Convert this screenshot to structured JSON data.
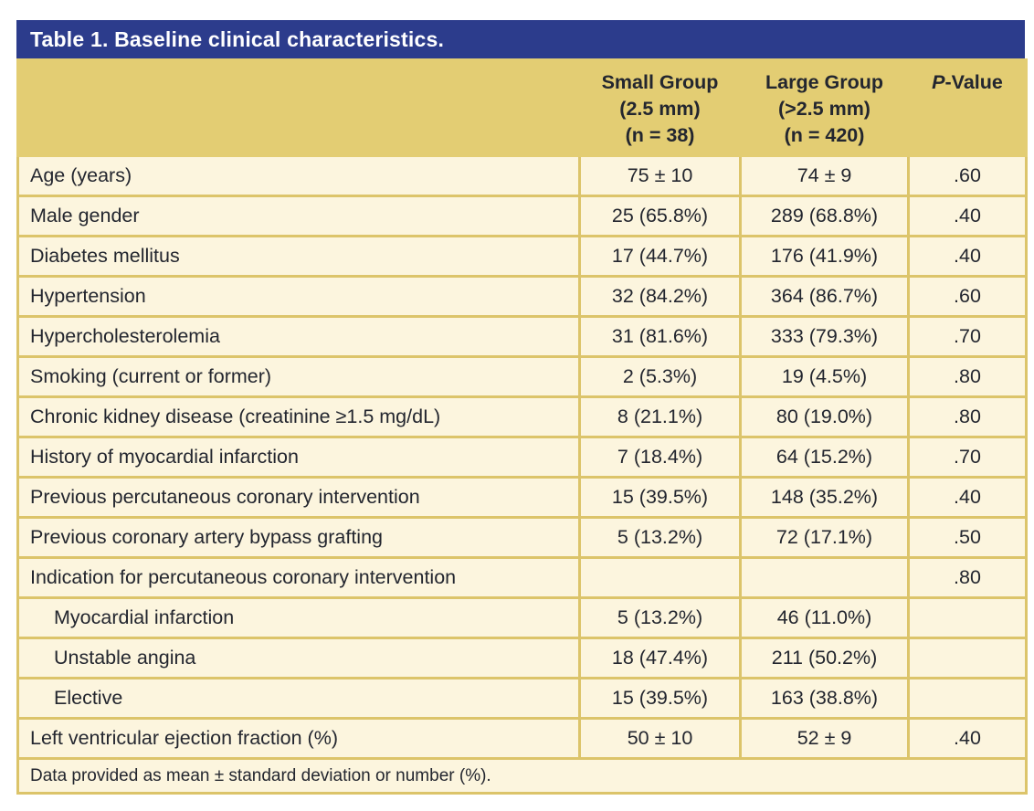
{
  "table": {
    "title": "Table 1. Baseline clinical characteristics.",
    "columns": {
      "variable": {
        "label": ""
      },
      "small": {
        "lines": [
          "Small Group",
          "(2.5 mm)",
          "(n = 38)"
        ]
      },
      "large": {
        "lines": [
          "Large Group",
          "(>2.5 mm)",
          "(n = 420)"
        ]
      },
      "pvalue": {
        "italic": "P",
        "rest": "-Value"
      }
    },
    "rows": [
      {
        "label": "Age (years)",
        "indent": false,
        "small": "75 ± 10",
        "large": "74 ± 9",
        "p": ".60"
      },
      {
        "label": "Male gender",
        "indent": false,
        "small": "25 (65.8%)",
        "large": "289 (68.8%)",
        "p": ".40"
      },
      {
        "label": "Diabetes mellitus",
        "indent": false,
        "small": "17 (44.7%)",
        "large": "176 (41.9%)",
        "p": ".40"
      },
      {
        "label": "Hypertension",
        "indent": false,
        "small": "32 (84.2%)",
        "large": "364 (86.7%)",
        "p": ".60"
      },
      {
        "label": "Hypercholesterolemia",
        "indent": false,
        "small": "31 (81.6%)",
        "large": "333 (79.3%)",
        "p": ".70"
      },
      {
        "label": "Smoking (current or former)",
        "indent": false,
        "small": "2 (5.3%)",
        "large": "19 (4.5%)",
        "p": ".80"
      },
      {
        "label": "Chronic kidney disease (creatinine ≥1.5 mg/dL)",
        "indent": false,
        "small": "8 (21.1%)",
        "large": "80 (19.0%)",
        "p": ".80"
      },
      {
        "label": "History of myocardial infarction",
        "indent": false,
        "small": "7 (18.4%)",
        "large": "64 (15.2%)",
        "p": ".70"
      },
      {
        "label": "Previous percutaneous coronary intervention",
        "indent": false,
        "small": "15 (39.5%)",
        "large": "148 (35.2%)",
        "p": ".40"
      },
      {
        "label": "Previous coronary artery bypass grafting",
        "indent": false,
        "small": "5 (13.2%)",
        "large": "72 (17.1%)",
        "p": ".50"
      },
      {
        "label": "Indication for percutaneous coronary intervention",
        "indent": false,
        "small": "",
        "large": "",
        "p": ".80"
      },
      {
        "label": "Myocardial infarction",
        "indent": true,
        "small": "5 (13.2%)",
        "large": "46 (11.0%)",
        "p": ""
      },
      {
        "label": "Unstable angina",
        "indent": true,
        "small": "18 (47.4%)",
        "large": "211 (50.2%)",
        "p": ""
      },
      {
        "label": "Elective",
        "indent": true,
        "small": "15 (39.5%)",
        "large": "163 (38.8%)",
        "p": ""
      },
      {
        "label": "Left ventricular ejection fraction (%)",
        "indent": false,
        "small": "50 ± 10",
        "large": "52 ± 9",
        "p": ".40"
      }
    ],
    "footnote": "Data provided as mean ± standard deviation or number (%)."
  },
  "colors": {
    "title_bar": "#2C3C8C",
    "title_text": "#FFFFFF",
    "header_band": "#E3CD73",
    "row_background": "#FCF5DE",
    "grid_border": "#DCC46A",
    "text": "#23262F"
  }
}
